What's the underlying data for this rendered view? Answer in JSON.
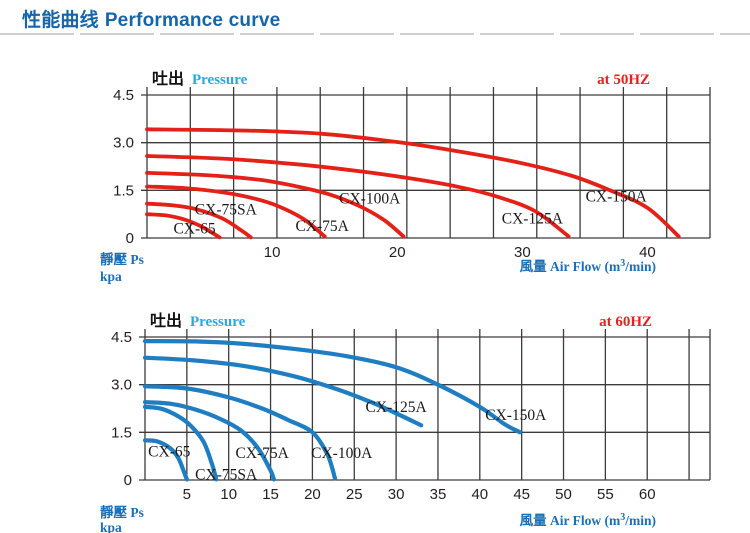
{
  "page": {
    "title_cn": "性能曲线",
    "title_en": "Performance curve"
  },
  "colors": {
    "title_blue": "#1565a8",
    "red_curve": "#e32119",
    "blue_curve": "#1f7ec2",
    "grid": "#3d3b3c",
    "axis_text": "#231f20",
    "curve_label_text": "#1a1a1a",
    "pressure_cyan": "#29a7e0",
    "freq_red": "#e8211d",
    "axis_label_blue": "#1b6fb5",
    "header_cn_black": "#111111",
    "divider_gray": "#cbd0d4"
  },
  "chart_data": [
    {
      "type": "line",
      "title": {
        "cn": "吐出",
        "en": "Pressure"
      },
      "condition": "at  50HZ",
      "grid": true,
      "legend_position": "inline-curve-labels",
      "x_axis": {
        "label_cn": "風量",
        "label_en_prefix": "Air Flow (m",
        "label_sup": "3",
        "label_en_suffix": "/min)",
        "ticks": [
          10,
          20,
          30,
          40
        ],
        "range": [
          0,
          45
        ],
        "grid_divisions": 13
      },
      "y_axis": {
        "label_cn": "靜壓",
        "label_en": "Ps",
        "unit": "kpa",
        "tick_labels": [
          "0",
          "1.5",
          "3.0",
          "4.5"
        ],
        "ticks": [
          0,
          1.5,
          3.0,
          4.5
        ],
        "range": [
          0,
          4.5
        ]
      },
      "curve_color": "#e32119",
      "series": [
        {
          "name": "CX-150A",
          "label_at": [
            37.5,
            1.3
          ],
          "points": [
            [
              0,
              3.42
            ],
            [
              8,
              3.38
            ],
            [
              14,
              3.28
            ],
            [
              20,
              3.02
            ],
            [
              25,
              2.72
            ],
            [
              30,
              2.35
            ],
            [
              34,
              1.95
            ],
            [
              37,
              1.5
            ],
            [
              40,
              0.95
            ],
            [
              42.5,
              0.05
            ]
          ]
        },
        {
          "name": "CX-125A",
          "label_at": [
            30.8,
            0.62
          ],
          "points": [
            [
              0,
              2.58
            ],
            [
              6,
              2.5
            ],
            [
              12,
              2.32
            ],
            [
              17,
              2.1
            ],
            [
              21,
              1.88
            ],
            [
              25,
              1.6
            ],
            [
              28,
              1.3
            ],
            [
              31,
              0.85
            ],
            [
              33.7,
              0.05
            ]
          ]
        },
        {
          "name": "CX-100A",
          "label_at": [
            17.8,
            1.25
          ],
          "points": [
            [
              0,
              2.05
            ],
            [
              5,
              1.97
            ],
            [
              9,
              1.83
            ],
            [
              12,
              1.62
            ],
            [
              14.5,
              1.38
            ],
            [
              17,
              1.0
            ],
            [
              19,
              0.55
            ],
            [
              20.5,
              0.05
            ]
          ]
        },
        {
          "name": "CX-75A",
          "label_at": [
            14.0,
            0.38
          ],
          "points": [
            [
              0,
              1.62
            ],
            [
              3,
              1.57
            ],
            [
              6,
              1.44
            ],
            [
              8.5,
              1.25
            ],
            [
              10.5,
              1.0
            ],
            [
              12.5,
              0.6
            ],
            [
              14.2,
              0.05
            ]
          ]
        },
        {
          "name": "CX-75SA",
          "label_at": [
            6.3,
            0.9
          ],
          "points": [
            [
              0,
              1.08
            ],
            [
              2,
              1.03
            ],
            [
              4,
              0.9
            ],
            [
              6,
              0.62
            ],
            [
              7.5,
              0.25
            ],
            [
              8.3,
              0.02
            ]
          ]
        },
        {
          "name": "CX-65",
          "label_at": [
            3.8,
            0.3
          ],
          "points": [
            [
              0,
              0.75
            ],
            [
              1.5,
              0.71
            ],
            [
              3,
              0.58
            ],
            [
              4.5,
              0.33
            ],
            [
              5.8,
              0.02
            ]
          ]
        }
      ]
    },
    {
      "type": "line",
      "title": {
        "cn": "吐出",
        "en": "Pressure"
      },
      "condition": "at  60HZ",
      "grid": true,
      "legend_position": "inline-curve-labels",
      "x_axis": {
        "label_cn": "風量",
        "label_en_prefix": "Air Flow (m",
        "label_sup": "3",
        "label_en_suffix": "/min)",
        "ticks": [
          5,
          10,
          15,
          20,
          25,
          30,
          35,
          40,
          45,
          50,
          55,
          60
        ],
        "range": [
          0,
          67.5
        ],
        "grid_step": 5
      },
      "y_axis": {
        "label_cn": "靜壓",
        "label_en": "Ps",
        "unit": "kpa",
        "tick_labels": [
          "0",
          "1.5",
          "3.0",
          "4.5"
        ],
        "ticks": [
          0,
          1.5,
          3.0,
          4.5
        ],
        "range": [
          0,
          4.5
        ]
      },
      "curve_color": "#1f7ec2",
      "series": [
        {
          "name": "CX-150A",
          "label_at": [
            44.3,
            2.05
          ],
          "points": [
            [
              0,
              4.37
            ],
            [
              6,
              4.36
            ],
            [
              12,
              4.28
            ],
            [
              18,
              4.12
            ],
            [
              24,
              3.9
            ],
            [
              30,
              3.55
            ],
            [
              35,
              3.0
            ],
            [
              40,
              2.3
            ],
            [
              43,
              1.75
            ],
            [
              44.8,
              1.5
            ]
          ]
        },
        {
          "name": "CX-125A",
          "label_at": [
            30.0,
            2.3
          ],
          "points": [
            [
              0,
              3.85
            ],
            [
              6,
              3.76
            ],
            [
              12,
              3.58
            ],
            [
              18,
              3.25
            ],
            [
              23,
              2.85
            ],
            [
              27,
              2.45
            ],
            [
              30,
              2.1
            ],
            [
              33,
              1.72
            ]
          ]
        },
        {
          "name": "CX-100A",
          "label_at": [
            23.5,
            0.85
          ],
          "points": [
            [
              0,
              2.95
            ],
            [
              5,
              2.88
            ],
            [
              10,
              2.6
            ],
            [
              14,
              2.25
            ],
            [
              17,
              1.9
            ],
            [
              20,
              1.5
            ],
            [
              21.8,
              0.8
            ],
            [
              22.7,
              0.05
            ]
          ]
        },
        {
          "name": "CX-75A",
          "label_at": [
            14.0,
            0.85
          ],
          "points": [
            [
              0,
              2.45
            ],
            [
              3,
              2.4
            ],
            [
              6,
              2.22
            ],
            [
              9,
              1.92
            ],
            [
              11.5,
              1.55
            ],
            [
              13.5,
              1.0
            ],
            [
              15,
              0.3
            ],
            [
              15.4,
              0.02
            ]
          ]
        },
        {
          "name": "CX-75SA",
          "label_at": [
            9.7,
            0.18
          ],
          "points": [
            [
              0,
              2.3
            ],
            [
              2,
              2.24
            ],
            [
              4,
              2.0
            ],
            [
              5.5,
              1.7
            ],
            [
              7,
              1.2
            ],
            [
              8,
              0.5
            ],
            [
              8.5,
              0.02
            ]
          ]
        },
        {
          "name": "CX-65",
          "label_at": [
            2.9,
            0.9
          ],
          "points": [
            [
              0,
              1.25
            ],
            [
              1.5,
              1.21
            ],
            [
              3,
              1.0
            ],
            [
              4,
              0.68
            ],
            [
              4.8,
              0.15
            ],
            [
              5.0,
              0.02
            ]
          ]
        }
      ]
    }
  ]
}
